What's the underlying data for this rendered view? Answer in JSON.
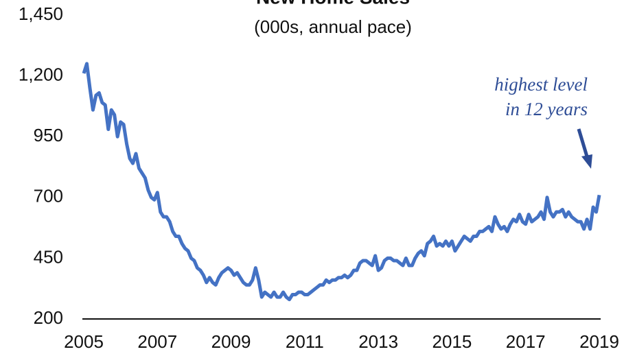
{
  "chart_data": {
    "type": "line",
    "title": "New Home Sales",
    "subtitle": "(000s, annual pace)",
    "annotation": [
      "highest level",
      "in 12 years"
    ],
    "categories": [
      "2005",
      null,
      null,
      null,
      null,
      null,
      null,
      null,
      null,
      null,
      null,
      null,
      null,
      null,
      null,
      null,
      null,
      null,
      null,
      null,
      null,
      null,
      null,
      null,
      "2007",
      null,
      null,
      null,
      null,
      null,
      null,
      null,
      null,
      null,
      null,
      null,
      null,
      null,
      null,
      null,
      null,
      null,
      null,
      null,
      null,
      null,
      null,
      null,
      "2009",
      null,
      null,
      null,
      null,
      null,
      null,
      null,
      null,
      null,
      null,
      null,
      null,
      null,
      null,
      null,
      null,
      null,
      null,
      null,
      null,
      null,
      null,
      null,
      "2011",
      null,
      null,
      null,
      null,
      null,
      null,
      null,
      null,
      null,
      null,
      null,
      null,
      null,
      null,
      null,
      null,
      null,
      null,
      null,
      null,
      null,
      null,
      null,
      "2013",
      null,
      null,
      null,
      null,
      null,
      null,
      null,
      null,
      null,
      null,
      null,
      null,
      null,
      null,
      null,
      null,
      null,
      null,
      null,
      null,
      null,
      null,
      null,
      "2015",
      null,
      null,
      null,
      null,
      null,
      null,
      null,
      null,
      null,
      null,
      null,
      null,
      null,
      null,
      null,
      null,
      null,
      null,
      null,
      null,
      null,
      null,
      null,
      "2017",
      null,
      null,
      null,
      null,
      null,
      null,
      null,
      null,
      null,
      null,
      null,
      null,
      null,
      null,
      null,
      null,
      null,
      null,
      null,
      null,
      null,
      null,
      null,
      "2019"
    ],
    "series": [
      {
        "name": "New Home Sales",
        "color": "#4472c4",
        "values": [
          1210,
          1250,
          1150,
          1060,
          1120,
          1130,
          1090,
          1080,
          980,
          1060,
          1040,
          950,
          1010,
          1000,
          920,
          860,
          840,
          880,
          820,
          800,
          780,
          730,
          700,
          690,
          720,
          640,
          620,
          620,
          600,
          560,
          540,
          540,
          510,
          490,
          480,
          450,
          440,
          410,
          400,
          380,
          350,
          370,
          350,
          340,
          370,
          390,
          400,
          410,
          400,
          380,
          390,
          370,
          350,
          340,
          340,
          360,
          410,
          360,
          290,
          310,
          300,
          290,
          310,
          290,
          290,
          310,
          290,
          280,
          300,
          300,
          310,
          310,
          300,
          300,
          310,
          320,
          330,
          340,
          340,
          360,
          350,
          360,
          360,
          370,
          370,
          380,
          370,
          380,
          400,
          400,
          430,
          440,
          440,
          430,
          420,
          460,
          400,
          410,
          440,
          450,
          450,
          440,
          440,
          430,
          420,
          450,
          420,
          420,
          450,
          470,
          480,
          460,
          510,
          520,
          540,
          500,
          510,
          500,
          520,
          500,
          520,
          480,
          500,
          520,
          540,
          530,
          520,
          540,
          540,
          560,
          560,
          570,
          580,
          560,
          620,
          590,
          570,
          580,
          560,
          590,
          610,
          600,
          630,
          600,
          590,
          630,
          600,
          610,
          620,
          640,
          610,
          700,
          640,
          620,
          640,
          640,
          650,
          620,
          640,
          620,
          610,
          600,
          600,
          570,
          610,
          570,
          660,
          640,
          710
        ]
      }
    ],
    "ylim": [
      200,
      1450
    ],
    "yticks": [
      200,
      450,
      700,
      950,
      {
        "value": 1200,
        "label": "1,200"
      },
      {
        "value": 1450,
        "label": "1,450"
      }
    ],
    "grid": false
  }
}
